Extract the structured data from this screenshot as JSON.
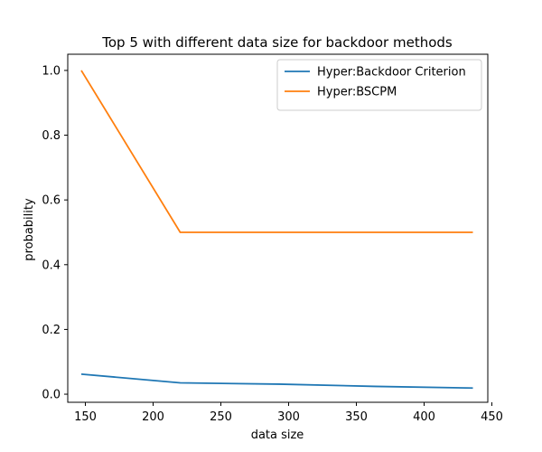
{
  "chart_data": {
    "type": "line",
    "title": "Top 5 with different data size for backdoor methods",
    "xlabel": "data size",
    "ylabel": "probability",
    "xlim": [
      137,
      447
    ],
    "ylim": [
      -0.025,
      1.05
    ],
    "xticks": [
      150,
      200,
      250,
      300,
      350,
      400,
      450
    ],
    "yticks": [
      0.0,
      0.2,
      0.4,
      0.6,
      0.8,
      1.0
    ],
    "ytick_labels": [
      "0.0",
      "0.2",
      "0.4",
      "0.6",
      "0.8",
      "1.0"
    ],
    "grid": false,
    "legend_position": "top-right",
    "series": [
      {
        "name": "Hyper:Backdoor Criterion",
        "color": "#1f77b4",
        "x": [
          147,
          220,
          293,
          364,
          436
        ],
        "y": [
          0.062,
          0.035,
          0.031,
          0.024,
          0.019
        ]
      },
      {
        "name": "Hyper:BSCPM",
        "color": "#ff7f0e",
        "x": [
          147,
          220,
          293,
          364,
          436
        ],
        "y": [
          1.0,
          0.5,
          0.5,
          0.5,
          0.5
        ]
      }
    ]
  }
}
